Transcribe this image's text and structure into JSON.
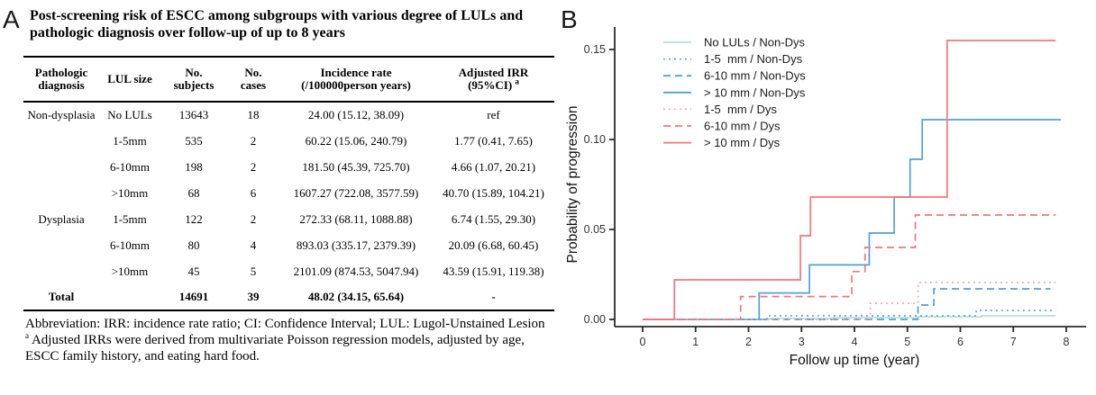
{
  "figure": {
    "panelA": {
      "label": "A",
      "title": "Post-screening risk of ESCC among subgroups with various degree of LULs and pathologic diagnosis over follow-up of up to 8 years",
      "table": {
        "col_headers": [
          {
            "lines": [
              "Pathologic",
              "diagnosis"
            ]
          },
          {
            "lines": [
              "LUL size"
            ]
          },
          {
            "lines": [
              "No.",
              "subjects"
            ]
          },
          {
            "lines": [
              "No.",
              "cases"
            ]
          },
          {
            "lines": [
              "Incidence rate",
              "(/100000person years)"
            ]
          },
          {
            "lines": [
              "Adjusted IRR",
              "(95%CI)"
            ],
            "sup": "a"
          }
        ],
        "rows": [
          {
            "diagnosis": "Non-dysplasia",
            "lul_size": "No LULs",
            "subjects": "13643",
            "cases": "18",
            "incidence_rate": "24.00 (15.12, 38.09)",
            "adjusted_irr": "ref"
          },
          {
            "diagnosis": "",
            "lul_size": "1-5mm",
            "subjects": "535",
            "cases": "2",
            "incidence_rate": "60.22 (15.06, 240.79)",
            "adjusted_irr": "1.77 (0.41, 7.65)"
          },
          {
            "diagnosis": "",
            "lul_size": "6-10mm",
            "subjects": "198",
            "cases": "2",
            "incidence_rate": "181.50 (45.39, 725.70)",
            "adjusted_irr": "4.66 (1.07, 20.21)"
          },
          {
            "diagnosis": "",
            "lul_size": ">10mm",
            "subjects": "68",
            "cases": "6",
            "incidence_rate": "1607.27 (722.08, 3577.59)",
            "adjusted_irr": "40.70 (15.89, 104.21)"
          },
          {
            "diagnosis": "Dysplasia",
            "lul_size": "1-5mm",
            "subjects": "122",
            "cases": "2",
            "incidence_rate": "272.33 (68.11, 1088.88)",
            "adjusted_irr": "6.74 (1.55, 29.30)"
          },
          {
            "diagnosis": "",
            "lul_size": "6-10mm",
            "subjects": "80",
            "cases": "4",
            "incidence_rate": "893.03 (335.17, 2379.39)",
            "adjusted_irr": "20.09 (6.68, 60.45)"
          },
          {
            "diagnosis": "",
            "lul_size": ">10mm",
            "subjects": "45",
            "cases": "5",
            "incidence_rate": "2101.09 (874.53, 5047.94)",
            "adjusted_irr": "43.59 (15.91, 119.38)"
          },
          {
            "diagnosis": "Total",
            "lul_size": "",
            "subjects": "14691",
            "cases": "39",
            "incidence_rate": "48.02 (34.15, 65.64)",
            "adjusted_irr": "-",
            "bold": true
          }
        ]
      },
      "footnote_abbrev": "Abbreviation: IRR: incidence rate ratio; CI: Confidence Interval; LUL: Lugol-Unstained Lesion",
      "footnote_a": {
        "marker": "a",
        "text": "Adjusted IRRs were derived from multivariate Poisson regression models, adjusted by age, ESCC family history, and eating hard food."
      }
    },
    "panelB": {
      "label": "B"
    }
  },
  "chart_data": {
    "type": "line",
    "subtype": "kaplan-meier-step",
    "title": "",
    "xlabel": "Follow up time (year)",
    "ylabel": "Probability of progression",
    "xlim": [
      0,
      8
    ],
    "ylim": [
      0,
      0.16
    ],
    "xticks": [
      0,
      1,
      2,
      3,
      4,
      5,
      6,
      7,
      8
    ],
    "yticks": [
      {
        "label": "0.00",
        "value": 0.0
      },
      {
        "label": "0.05",
        "value": 0.05
      },
      {
        "label": "0.10",
        "value": 0.1
      },
      {
        "label": "0.15",
        "value": 0.15
      }
    ],
    "grid": false,
    "legend_position": "inside-top-left",
    "series": [
      {
        "name": "No LULs / Non-Dys",
        "color": "#bcdfd3",
        "style": "solid",
        "points": [
          [
            0,
            0
          ],
          [
            2.4,
            0.0005
          ],
          [
            3.6,
            0.001
          ],
          [
            5.2,
            0.0015
          ],
          [
            6.4,
            0.002
          ],
          [
            7.8,
            0.002
          ]
        ]
      },
      {
        "name": "1-5  mm / Non-Dys",
        "color": "#4da1dd",
        "style": "dotted",
        "points": [
          [
            0,
            0
          ],
          [
            2.35,
            0.002
          ],
          [
            6.3,
            0.005
          ],
          [
            7.8,
            0.005
          ]
        ]
      },
      {
        "name": "6-10 mm / Non-Dys",
        "color": "#4da1dd",
        "style": "dashed",
        "points": [
          [
            0,
            0
          ],
          [
            5.2,
            0.008
          ],
          [
            5.5,
            0.017
          ],
          [
            7.7,
            0.017
          ]
        ]
      },
      {
        "name": "> 10 mm / Non-Dys",
        "color": "#4da1dd",
        "style": "solid",
        "points": [
          [
            0,
            0
          ],
          [
            2.2,
            0.0147
          ],
          [
            3.15,
            0.0303
          ],
          [
            4.28,
            0.048
          ],
          [
            4.75,
            0.068
          ],
          [
            5.05,
            0.089
          ],
          [
            5.28,
            0.111
          ],
          [
            7.9,
            0.111
          ]
        ]
      },
      {
        "name": "1-5  mm / Dys",
        "color": "#f5a0a0",
        "style": "dotted",
        "points": [
          [
            0,
            0
          ],
          [
            4.3,
            0.009
          ],
          [
            5.2,
            0.0205
          ],
          [
            7.8,
            0.0205
          ]
        ]
      },
      {
        "name": "6-10 mm / Dys",
        "color": "#f4767a",
        "style": "dashed",
        "points": [
          [
            0,
            0
          ],
          [
            1.85,
            0.0127
          ],
          [
            3.95,
            0.0266
          ],
          [
            4.2,
            0.04
          ],
          [
            5.15,
            0.058
          ],
          [
            7.8,
            0.058
          ]
        ]
      },
      {
        "name": "> 10 mm / Dys",
        "color": "#f4767a",
        "style": "solid",
        "points": [
          [
            0,
            0
          ],
          [
            0.6,
            0.022
          ],
          [
            2.98,
            0.0465
          ],
          [
            3.17,
            0.068
          ],
          [
            5.75,
            0.155
          ],
          [
            7.8,
            0.155
          ]
        ]
      }
    ]
  },
  "colors": {
    "axis": "#2b2b2b",
    "tick_text": "#333333",
    "legend_text": "#1a1a1a"
  }
}
